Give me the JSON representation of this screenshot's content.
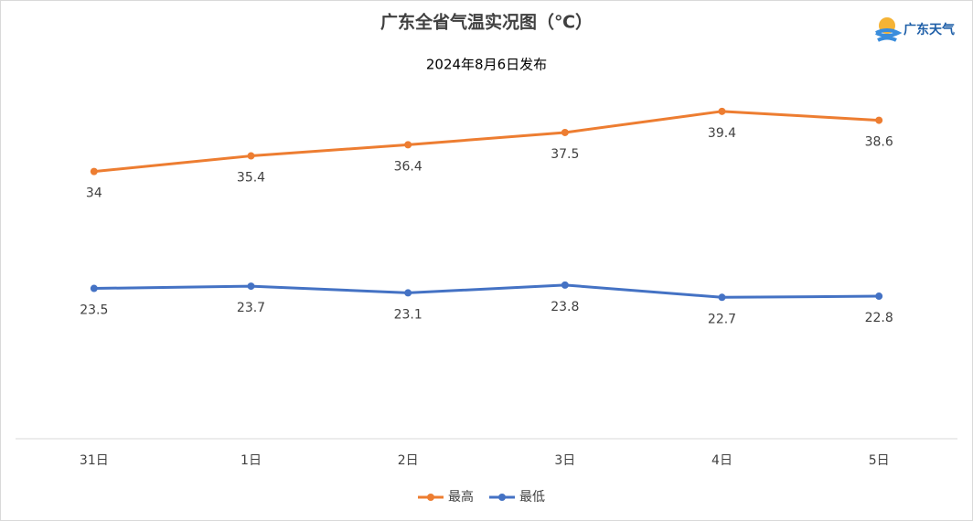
{
  "logo": "广东天气",
  "chart_data": {
    "type": "line",
    "title": "广东全省气温实况图（℃）",
    "subtitle": "2024年8月6日发布",
    "categories": [
      "31日",
      "1日",
      "2日",
      "3日",
      "4日",
      "5日"
    ],
    "series": [
      {
        "name": "最高",
        "color": "#ed7d31",
        "values": [
          34,
          35.4,
          36.4,
          37.5,
          39.4,
          38.6
        ]
      },
      {
        "name": "最低",
        "color": "#4472c4",
        "values": [
          23.5,
          23.7,
          23.1,
          23.8,
          22.7,
          22.8
        ]
      }
    ],
    "ylim": [
      10,
      45
    ],
    "legend": "bottom"
  }
}
